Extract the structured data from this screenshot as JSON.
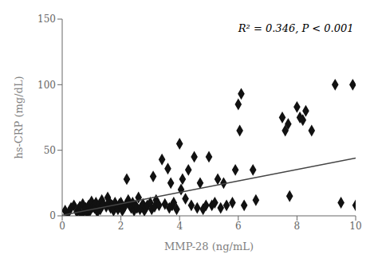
{
  "chart_data": {
    "type": "scatter",
    "title": "",
    "xlabel": "MMP-28 (ng/mL)",
    "ylabel": "hs-CRP (mg/dL)",
    "annotation": "R² = 0.346, P < 0.001",
    "xlim": [
      0,
      10
    ],
    "ylim": [
      0,
      150
    ],
    "xticks": [
      0,
      2,
      4,
      6,
      8,
      10
    ],
    "yticks": [
      0,
      50,
      100,
      150
    ],
    "grid": false,
    "series": [
      {
        "type": "scatter",
        "color": "#111111",
        "marker": "diamond",
        "x": [
          0.1,
          0.2,
          0.3,
          0.4,
          0.5,
          0.55,
          0.6,
          0.65,
          0.7,
          0.75,
          0.8,
          0.85,
          0.9,
          0.95,
          1.0,
          1.05,
          1.1,
          1.15,
          1.2,
          1.25,
          1.3,
          1.35,
          1.4,
          1.5,
          1.55,
          1.6,
          1.65,
          1.7,
          1.75,
          1.8,
          1.85,
          1.9,
          1.95,
          2.0,
          2.05,
          2.1,
          2.15,
          2.2,
          2.25,
          2.3,
          2.35,
          2.4,
          2.45,
          2.5,
          2.55,
          2.6,
          2.65,
          2.7,
          2.75,
          2.8,
          2.85,
          2.9,
          3.0,
          3.05,
          3.1,
          3.15,
          3.2,
          3.3,
          3.4,
          3.5,
          3.6,
          3.65,
          3.7,
          3.75,
          3.8,
          3.9,
          4.0,
          4.05,
          4.1,
          4.2,
          4.3,
          4.4,
          4.5,
          4.6,
          4.7,
          4.8,
          4.9,
          5.0,
          5.1,
          5.2,
          5.3,
          5.4,
          5.5,
          5.6,
          5.8,
          5.9,
          6.0,
          6.05,
          6.1,
          6.2,
          6.5,
          6.6,
          7.5,
          7.6,
          7.7,
          7.75,
          8.0,
          8.1,
          8.2,
          8.3,
          8.5,
          9.3,
          9.5,
          9.9,
          10.0
        ],
        "values": [
          4,
          2,
          6,
          8,
          3,
          5,
          7,
          1,
          9,
          4,
          6,
          2,
          8,
          4,
          11,
          7,
          6,
          10,
          3,
          8,
          5,
          12,
          9,
          7,
          14,
          11,
          6,
          8,
          4,
          10,
          7,
          5,
          9,
          10,
          4,
          6,
          8,
          28,
          12,
          8,
          6,
          10,
          4,
          8,
          6,
          14,
          5,
          7,
          9,
          4,
          6,
          8,
          10,
          5,
          30,
          7,
          12,
          8,
          43,
          9,
          36,
          6,
          25,
          8,
          10,
          5,
          55,
          20,
          28,
          13,
          35,
          8,
          45,
          6,
          25,
          5,
          8,
          45,
          8,
          10,
          28,
          6,
          25,
          8,
          10,
          35,
          85,
          65,
          93,
          8,
          35,
          12,
          75,
          65,
          70,
          15,
          83,
          75,
          73,
          80,
          65,
          100,
          10,
          100,
          8
        ]
      },
      {
        "type": "line",
        "color": "#444444",
        "line_style": "solid",
        "x": [
          0,
          10
        ],
        "values": [
          0.5,
          44.0
        ]
      }
    ]
  }
}
